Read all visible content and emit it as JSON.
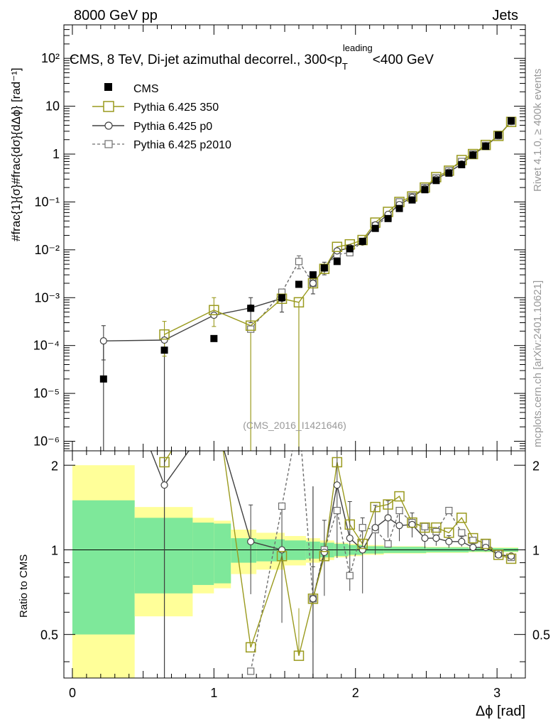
{
  "header": {
    "energy_label": "8000 GeV pp",
    "process_label": "Jets",
    "rivet_label": "Rivet 4.1.0, ≥ 400k events",
    "site_label": "mcplots.cern.ch [arXiv:2401.10621]",
    "analysis_label": "(CMS_2016_I1421646)"
  },
  "colors": {
    "cms": "#000000",
    "py350": "#9a9a1e",
    "p0": "#404040",
    "p2010": "#6e6e6e",
    "band_inner": "#7ee89a",
    "band_outer": "#ffff99"
  },
  "chart_data": {
    "type": "scatter",
    "title": "CMS, 8 TeV, Di-jet azimuthal decorrel., 300<p_T^leading<400 GeV",
    "title_parts": {
      "main": "CMS, 8 TeV, Di-jet azimuthal decorrel., 300<p",
      "sub": "T",
      "sup": "leading",
      "tail": "<400 GeV"
    },
    "xlabel": "Δϕ [rad]",
    "ylabel_main": "#frac{1}{σ}#frac{dσ}{dΔϕ} [rad⁻¹]",
    "ylabel_ratio": "Ratio to CMS",
    "xlim": [
      -0.06,
      3.2
    ],
    "ylim_log": [
      -6.2,
      2.7
    ],
    "ylim_ratio": [
      0.35,
      2.25
    ],
    "x_ticks": [
      "0",
      "1",
      "2",
      "3"
    ],
    "y_ticks_main": [
      "10⁻⁶",
      "10⁻⁵",
      "10⁻⁴",
      "10⁻³",
      "10⁻²",
      "10⁻¹",
      "1",
      "10",
      "10²"
    ],
    "y_ticks_ratio": [
      "0.5",
      "1",
      "2"
    ],
    "legend": [
      "CMS",
      "Pythia 6.425 350",
      "Pythia 6.425 p0",
      "Pythia 6.425 p2010"
    ],
    "x": [
      0.22,
      0.65,
      1.0,
      1.26,
      1.48,
      1.6,
      1.7,
      1.78,
      1.87,
      1.96,
      2.05,
      2.14,
      2.23,
      2.31,
      2.4,
      2.49,
      2.57,
      2.66,
      2.75,
      2.83,
      2.92,
      3.01,
      3.1
    ],
    "series": [
      {
        "name": "CMS",
        "values": [
          2e-05,
          8e-05,
          0.00014,
          0.0006,
          0.001,
          0.0019,
          0.003,
          0.0042,
          0.0057,
          0.0105,
          0.015,
          0.028,
          0.045,
          0.073,
          0.11,
          0.18,
          0.28,
          0.4,
          0.6,
          0.95,
          1.45,
          2.5,
          5.0
        ]
      },
      {
        "name": "Pythia 6.425 350",
        "values": [
          null,
          0.00017,
          0.00055,
          0.00026,
          0.00095,
          0.0008,
          0.002,
          0.004,
          0.0115,
          0.013,
          0.016,
          0.037,
          0.062,
          0.1,
          0.13,
          0.2,
          0.33,
          0.45,
          0.75,
          1.0,
          1.55,
          2.4,
          4.7
        ]
      },
      {
        "name": "Pythia 6.425 p0",
        "values": [
          0.000125,
          0.00013,
          0.00043,
          0.00061,
          0.00097,
          null,
          0.002,
          0.0041,
          0.0095,
          0.011,
          0.0145,
          0.033,
          0.055,
          0.088,
          0.125,
          0.19,
          0.3,
          0.42,
          0.62,
          0.97,
          1.48,
          2.4,
          4.8
        ]
      },
      {
        "name": "Pythia 6.425 p2010",
        "values": [
          null,
          null,
          null,
          0.00022,
          0.0013,
          0.0057,
          0.002,
          0.0042,
          0.008,
          0.0087,
          0.015,
          0.032,
          0.048,
          0.1,
          0.13,
          0.2,
          0.32,
          0.45,
          0.7,
          1.0,
          1.52,
          2.4,
          4.8
        ]
      }
    ],
    "ratio_series": [
      {
        "name": "Pythia 6.425 350",
        "values": [
          null,
          2.05,
          3.9,
          0.45,
          0.95,
          0.42,
          0.67,
          0.95,
          2.05,
          1.23,
          1.05,
          1.42,
          1.45,
          1.55,
          1.25,
          1.2,
          1.2,
          1.15,
          1.3,
          1.1,
          1.05,
          0.96,
          0.93
        ]
      },
      {
        "name": "Pythia 6.425 p0",
        "values": [
          6.0,
          1.7,
          3.0,
          1.07,
          1.0,
          null,
          0.67,
          0.98,
          1.7,
          1.1,
          1.0,
          1.2,
          1.3,
          1.22,
          1.23,
          1.1,
          1.1,
          1.07,
          1.07,
          1.02,
          1.02,
          0.96,
          0.95
        ]
      },
      {
        "name": "Pythia 6.425 p2010",
        "values": [
          null,
          null,
          null,
          0.37,
          1.43,
          3.0,
          0.67,
          1.0,
          1.38,
          0.81,
          1.2,
          1.18,
          1.05,
          1.38,
          1.25,
          1.21,
          1.16,
          1.38,
          1.15,
          1.08,
          1.06,
          0.97,
          0.94
        ]
      }
    ],
    "bands": {
      "edges": [
        0.0,
        0.44,
        0.85,
        1.0,
        1.12,
        1.3,
        1.5,
        1.65,
        1.75,
        1.85,
        1.95,
        2.05,
        2.2,
        2.5,
        2.8,
        3.15
      ],
      "inner": [
        0.5,
        0.3,
        0.25,
        0.24,
        0.1,
        0.09,
        0.08,
        0.07,
        0.06,
        0.05,
        0.04,
        0.03,
        0.025,
        0.02,
        0.015
      ],
      "outer": [
        1.0,
        0.42,
        0.3,
        0.27,
        0.18,
        0.15,
        0.12,
        0.1,
        0.08,
        0.06,
        0.05,
        0.04,
        0.03,
        0.025,
        0.02
      ]
    }
  }
}
